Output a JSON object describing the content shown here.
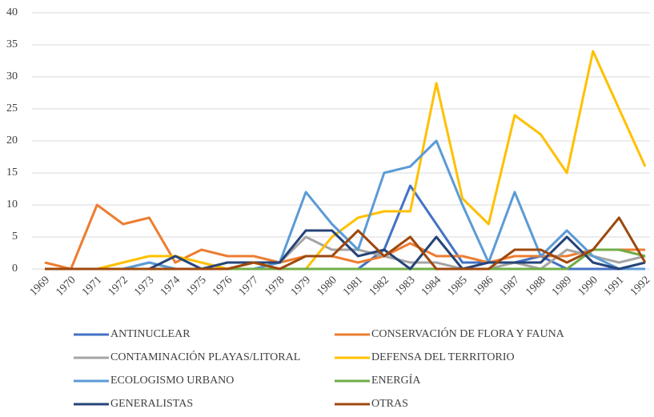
{
  "chart_data": {
    "type": "line",
    "categories": [
      "1969",
      "1970",
      "1971",
      "1972",
      "1973",
      "1974",
      "1975",
      "1976",
      "1977",
      "1978",
      "1979",
      "1980",
      "1981",
      "1982",
      "1983",
      "1984",
      "1985",
      "1986",
      "1987",
      "1988",
      "1989",
      "1990",
      "1991",
      "1992"
    ],
    "series": [
      {
        "name": "ANTINUCLEAR",
        "color": "#4472c4",
        "values": [
          0,
          0,
          0,
          0,
          0,
          0,
          0,
          0,
          0,
          0,
          0,
          0,
          0,
          3,
          13,
          7,
          1,
          1,
          1,
          2,
          0,
          0,
          0,
          0
        ]
      },
      {
        "name": "CONSERVACIÓN DE FLORA Y FAUNA",
        "color": "#ed7d31",
        "values": [
          1,
          0,
          10,
          7,
          8,
          1,
          3,
          2,
          2,
          1,
          2,
          2,
          1,
          2,
          4,
          2,
          2,
          1,
          2,
          2,
          2,
          3,
          3,
          3
        ]
      },
      {
        "name": "CONTAMINACIÓN PLAYAS/LITORAL",
        "color": "#a5a5a5",
        "values": [
          0,
          0,
          0,
          0,
          1,
          0,
          0,
          0,
          1,
          1,
          5,
          3,
          3,
          2,
          1,
          1,
          0,
          0,
          1,
          0,
          3,
          2,
          1,
          2
        ]
      },
      {
        "name": "DEFENSA DEL TERRITORIO",
        "color": "#ffc000",
        "values": [
          0,
          0,
          0,
          1,
          2,
          2,
          1,
          0,
          1,
          0,
          0,
          5,
          8,
          9,
          9,
          29,
          11,
          7,
          24,
          21,
          15,
          34,
          25,
          16
        ]
      },
      {
        "name": "ECOLOGISMO URBANO",
        "color": "#5b9bd5",
        "values": [
          0,
          0,
          0,
          0,
          1,
          0,
          0,
          0,
          0,
          1,
          12,
          7,
          3,
          15,
          16,
          20,
          10,
          1,
          12,
          2,
          6,
          2,
          0,
          0
        ]
      },
      {
        "name": "ENERGÍA",
        "color": "#70ad47",
        "values": [
          0,
          0,
          0,
          0,
          0,
          0,
          0,
          0,
          0,
          0,
          0,
          0,
          0,
          0,
          0,
          0,
          0,
          0,
          0,
          0,
          0,
          3,
          3,
          2
        ]
      },
      {
        "name": "GENERALISTAS",
        "color": "#264478",
        "values": [
          0,
          0,
          0,
          0,
          0,
          2,
          0,
          1,
          1,
          1,
          6,
          6,
          2,
          3,
          0,
          5,
          0,
          1,
          1,
          1,
          5,
          1,
          0,
          1
        ]
      },
      {
        "name": "OTRAS",
        "color": "#9e480e",
        "values": [
          0,
          0,
          0,
          0,
          0,
          0,
          0,
          0,
          1,
          0,
          2,
          2,
          6,
          2,
          5,
          0,
          0,
          0,
          3,
          3,
          1,
          3,
          8,
          1
        ]
      }
    ],
    "ylim": [
      0,
      40
    ],
    "yticks": [
      0,
      5,
      10,
      15,
      20,
      25,
      30,
      35,
      40
    ],
    "grid": true,
    "legend": "bottom"
  }
}
